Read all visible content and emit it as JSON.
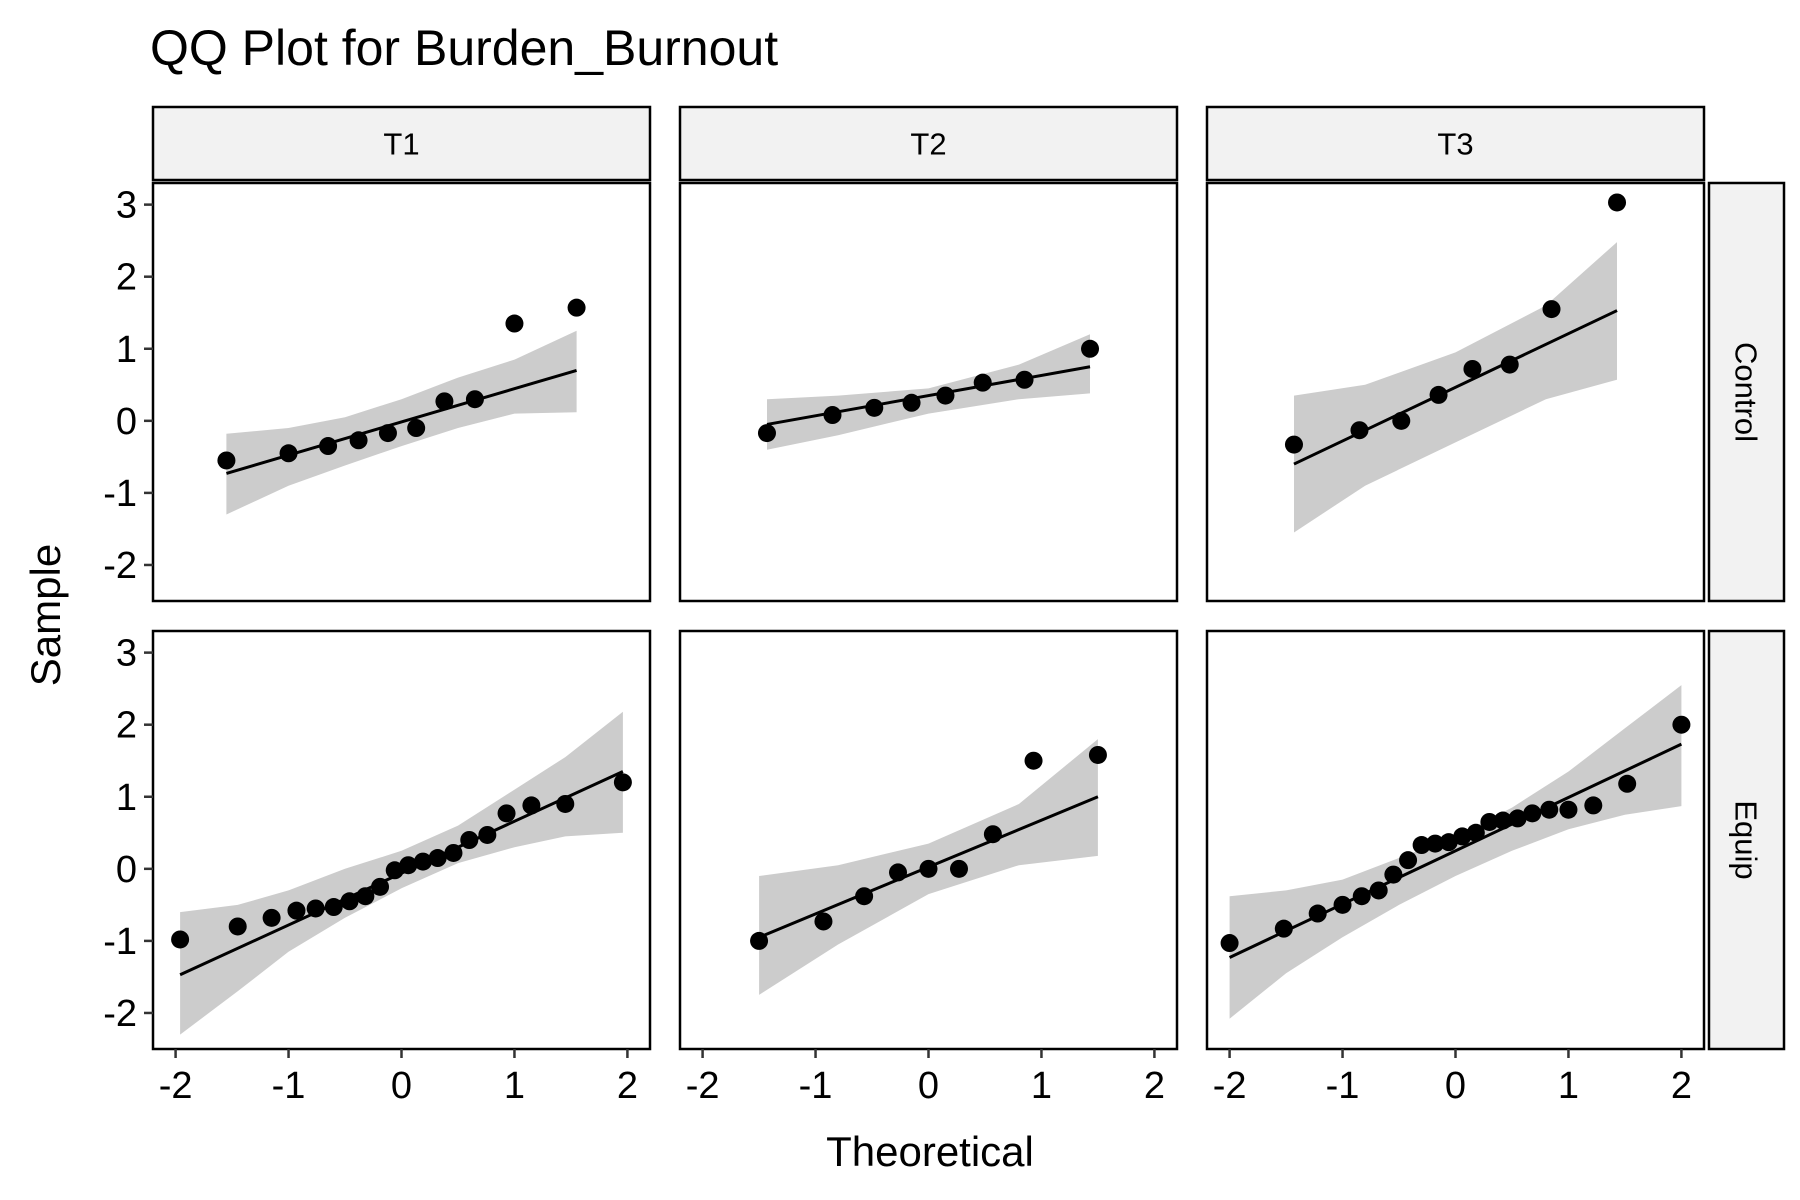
{
  "chart_data": {
    "type": "scatter",
    "title": "QQ Plot for Burden_Burnout",
    "xlabel": "Theoretical",
    "ylabel": "Sample",
    "xlim": [
      -2.2,
      2.2
    ],
    "ylim": [
      -2.5,
      3.3
    ],
    "x_ticks": [
      -2,
      -1,
      0,
      1,
      2
    ],
    "y_ticks": [
      -2,
      -1,
      0,
      1,
      2,
      3
    ],
    "x_tick_labels": [
      "-2",
      "-1",
      "0",
      "1",
      "2"
    ],
    "y_tick_labels": [
      "-2",
      "-1",
      "0",
      "1",
      "2",
      "3"
    ],
    "columns": [
      "T1",
      "T2",
      "T3"
    ],
    "rows": [
      "Control",
      "Equip"
    ],
    "grid": false,
    "colors": {
      "point": "#000000",
      "line": "#000000",
      "band": "#cccccc",
      "strip_fill": "#f2f2f2",
      "panel_border": "#000000"
    },
    "panels": [
      {
        "col": "T1",
        "row": "Control",
        "points": [
          [
            -1.55,
            -0.55
          ],
          [
            -1.0,
            -0.45
          ],
          [
            -0.65,
            -0.35
          ],
          [
            -0.38,
            -0.27
          ],
          [
            -0.12,
            -0.17
          ],
          [
            0.13,
            -0.1
          ],
          [
            0.38,
            0.27
          ],
          [
            0.65,
            0.3
          ],
          [
            1.0,
            1.35
          ],
          [
            1.55,
            1.57
          ]
        ],
        "line": [
          [
            -1.55,
            -0.73
          ],
          [
            1.55,
            0.7
          ]
        ],
        "band": {
          "x": [
            -1.55,
            -1.0,
            -0.5,
            0.0,
            0.5,
            1.0,
            1.55
          ],
          "lower": [
            -1.3,
            -0.9,
            -0.62,
            -0.35,
            -0.1,
            0.1,
            0.12
          ],
          "upper": [
            -0.18,
            -0.1,
            0.05,
            0.3,
            0.6,
            0.85,
            1.25
          ]
        }
      },
      {
        "col": "T2",
        "row": "Control",
        "points": [
          [
            -1.43,
            -0.17
          ],
          [
            -0.85,
            0.08
          ],
          [
            -0.48,
            0.18
          ],
          [
            -0.15,
            0.25
          ],
          [
            0.15,
            0.35
          ],
          [
            0.48,
            0.53
          ],
          [
            0.85,
            0.57
          ],
          [
            1.43,
            1.0
          ]
        ],
        "line": [
          [
            -1.43,
            -0.05
          ],
          [
            1.43,
            0.75
          ]
        ],
        "band": {
          "x": [
            -1.43,
            -0.8,
            0.0,
            0.8,
            1.43
          ],
          "lower": [
            -0.4,
            -0.2,
            0.1,
            0.3,
            0.38
          ],
          "upper": [
            0.3,
            0.35,
            0.45,
            0.78,
            1.2
          ]
        }
      },
      {
        "col": "T3",
        "row": "Control",
        "points": [
          [
            -1.43,
            -0.33
          ],
          [
            -0.85,
            -0.13
          ],
          [
            -0.48,
            0.0
          ],
          [
            -0.15,
            0.36
          ],
          [
            0.15,
            0.72
          ],
          [
            0.48,
            0.78
          ],
          [
            0.85,
            1.55
          ],
          [
            1.43,
            3.03
          ]
        ],
        "line": [
          [
            -1.43,
            -0.6
          ],
          [
            1.43,
            1.53
          ]
        ],
        "band": {
          "x": [
            -1.43,
            -0.8,
            0.0,
            0.8,
            1.43
          ],
          "lower": [
            -1.55,
            -0.9,
            -0.3,
            0.3,
            0.57
          ],
          "upper": [
            0.35,
            0.5,
            0.95,
            1.6,
            2.48
          ]
        }
      },
      {
        "col": "T1",
        "row": "Equip",
        "points": [
          [
            -1.96,
            -0.98
          ],
          [
            -1.45,
            -0.8
          ],
          [
            -1.15,
            -0.68
          ],
          [
            -0.93,
            -0.58
          ],
          [
            -0.76,
            -0.55
          ],
          [
            -0.6,
            -0.53
          ],
          [
            -0.46,
            -0.45
          ],
          [
            -0.32,
            -0.38
          ],
          [
            -0.19,
            -0.25
          ],
          [
            -0.06,
            -0.02
          ],
          [
            0.06,
            0.05
          ],
          [
            0.19,
            0.1
          ],
          [
            0.32,
            0.15
          ],
          [
            0.46,
            0.22
          ],
          [
            0.6,
            0.4
          ],
          [
            0.76,
            0.47
          ],
          [
            0.93,
            0.77
          ],
          [
            1.15,
            0.88
          ],
          [
            1.45,
            0.9
          ],
          [
            1.96,
            1.2
          ]
        ],
        "line": [
          [
            -1.96,
            -1.47
          ],
          [
            1.96,
            1.35
          ]
        ],
        "band": {
          "x": [
            -1.96,
            -1.45,
            -1.0,
            -0.5,
            0.0,
            0.5,
            1.0,
            1.45,
            1.96
          ],
          "lower": [
            -2.3,
            -1.7,
            -1.15,
            -0.68,
            -0.27,
            0.08,
            0.3,
            0.45,
            0.5
          ],
          "upper": [
            -0.6,
            -0.5,
            -0.3,
            0.0,
            0.25,
            0.6,
            1.1,
            1.55,
            2.18
          ]
        }
      },
      {
        "col": "T2",
        "row": "Equip",
        "points": [
          [
            -1.5,
            -1.0
          ],
          [
            -0.93,
            -0.73
          ],
          [
            -0.57,
            -0.38
          ],
          [
            -0.27,
            -0.05
          ],
          [
            0.0,
            0.0
          ],
          [
            0.27,
            0.0
          ],
          [
            0.57,
            0.48
          ],
          [
            0.93,
            1.5
          ],
          [
            1.5,
            1.58
          ]
        ],
        "line": [
          [
            -1.5,
            -0.95
          ],
          [
            1.5,
            1.0
          ]
        ],
        "band": {
          "x": [
            -1.5,
            -0.8,
            0.0,
            0.8,
            1.5
          ],
          "lower": [
            -1.75,
            -1.05,
            -0.35,
            0.05,
            0.18
          ],
          "upper": [
            -0.1,
            0.05,
            0.35,
            0.9,
            1.8
          ]
        }
      },
      {
        "col": "T3",
        "row": "Equip",
        "points": [
          [
            -2.0,
            -1.03
          ],
          [
            -1.52,
            -0.83
          ],
          [
            -1.22,
            -0.62
          ],
          [
            -1.0,
            -0.5
          ],
          [
            -0.83,
            -0.38
          ],
          [
            -0.68,
            -0.3
          ],
          [
            -0.55,
            -0.08
          ],
          [
            -0.42,
            0.12
          ],
          [
            -0.3,
            0.33
          ],
          [
            -0.18,
            0.35
          ],
          [
            -0.06,
            0.37
          ],
          [
            0.06,
            0.45
          ],
          [
            0.18,
            0.5
          ],
          [
            0.3,
            0.65
          ],
          [
            0.42,
            0.67
          ],
          [
            0.55,
            0.7
          ],
          [
            0.68,
            0.77
          ],
          [
            0.83,
            0.82
          ],
          [
            1.0,
            0.82
          ],
          [
            1.22,
            0.88
          ],
          [
            1.52,
            1.18
          ],
          [
            2.0,
            2.0
          ]
        ],
        "line": [
          [
            -2.0,
            -1.23
          ],
          [
            2.0,
            1.73
          ]
        ],
        "band": {
          "x": [
            -2.0,
            -1.5,
            -1.0,
            -0.5,
            0.0,
            0.5,
            1.0,
            1.5,
            2.0
          ],
          "lower": [
            -2.08,
            -1.45,
            -0.95,
            -0.5,
            -0.1,
            0.25,
            0.55,
            0.75,
            0.87
          ],
          "upper": [
            -0.38,
            -0.3,
            -0.15,
            0.15,
            0.45,
            0.85,
            1.35,
            1.95,
            2.55
          ]
        }
      }
    ]
  }
}
